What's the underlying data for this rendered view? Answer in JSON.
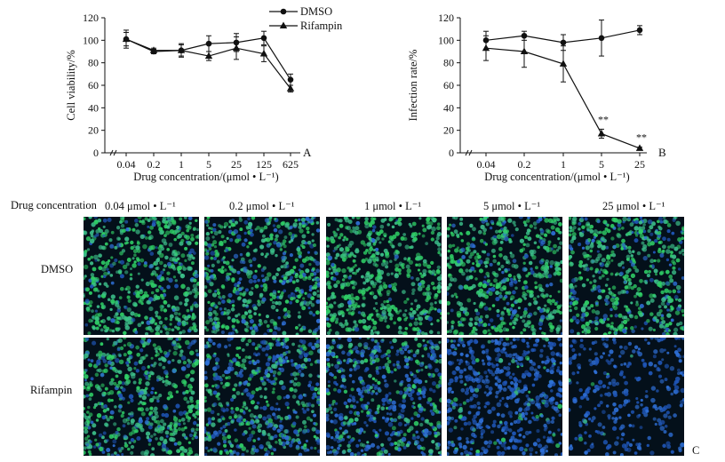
{
  "chart_data": [
    {
      "id": "A",
      "panel_label": "A",
      "type": "line",
      "categories": [
        "0.04",
        "0.2",
        "1",
        "5",
        "25",
        "125",
        "625"
      ],
      "xlabel": "Drug concentration/(μmol • L⁻¹)",
      "ylabel": "Cell viability/%",
      "ylim": [
        0,
        120
      ],
      "yticks": [
        "0",
        "20",
        "40",
        "60",
        "80",
        "100",
        "120"
      ],
      "series": [
        {
          "name": "DMSO",
          "marker": "circle",
          "values": [
            101,
            90,
            91,
            97,
            98,
            102,
            65
          ],
          "errors": [
            8,
            2,
            5,
            7,
            8,
            6,
            5
          ]
        },
        {
          "name": "Rifampin",
          "marker": "triangle",
          "values": [
            101,
            91,
            91,
            86,
            93,
            88,
            57
          ],
          "errors": [
            6,
            2,
            6,
            4,
            10,
            7,
            3
          ]
        }
      ],
      "legend": {
        "position": "top-right",
        "items": [
          "DMSO",
          "Rifampin"
        ]
      }
    },
    {
      "id": "B",
      "panel_label": "B",
      "type": "line",
      "categories": [
        "0.04",
        "0.2",
        "1",
        "5",
        "25"
      ],
      "xlabel": "Drug concentration/(μmol • L⁻¹)",
      "ylabel": "Infection rate/%",
      "ylim": [
        0,
        120
      ],
      "yticks": [
        "0",
        "20",
        "40",
        "60",
        "80",
        "100",
        "120"
      ],
      "series": [
        {
          "name": "DMSO",
          "marker": "circle",
          "values": [
            100,
            104,
            98,
            102,
            109
          ],
          "errors": [
            8,
            4,
            7,
            16,
            4
          ]
        },
        {
          "name": "Rifampin",
          "marker": "triangle",
          "values": [
            93,
            90,
            79,
            17,
            4
          ],
          "errors": [
            11,
            14,
            16,
            4,
            1
          ]
        }
      ],
      "annotations": [
        {
          "category": "5",
          "text": "**"
        },
        {
          "category": "25",
          "text": "**"
        }
      ]
    }
  ],
  "micrographs": {
    "panel_label": "C",
    "header_label": "Drug concentration",
    "concentrations": [
      "0.04 μmol • L⁻¹",
      "0.2  μmol • L⁻¹",
      "1 μmol • L⁻¹",
      "5 μmol • L⁻¹",
      "25 μmol • L⁻¹"
    ],
    "rows": [
      {
        "label": "DMSO",
        "infection_fraction": [
          0.85,
          0.7,
          0.95,
          0.8,
          0.75
        ]
      },
      {
        "label": "Rifampin",
        "infection_fraction": [
          0.75,
          0.5,
          0.4,
          0.08,
          0.02
        ]
      }
    ]
  },
  "colors": {
    "ink": "#111111",
    "nucleus_blue": "#2e6fd6",
    "infected_green": "#2fcf66",
    "panel_bg": "#04101a"
  }
}
